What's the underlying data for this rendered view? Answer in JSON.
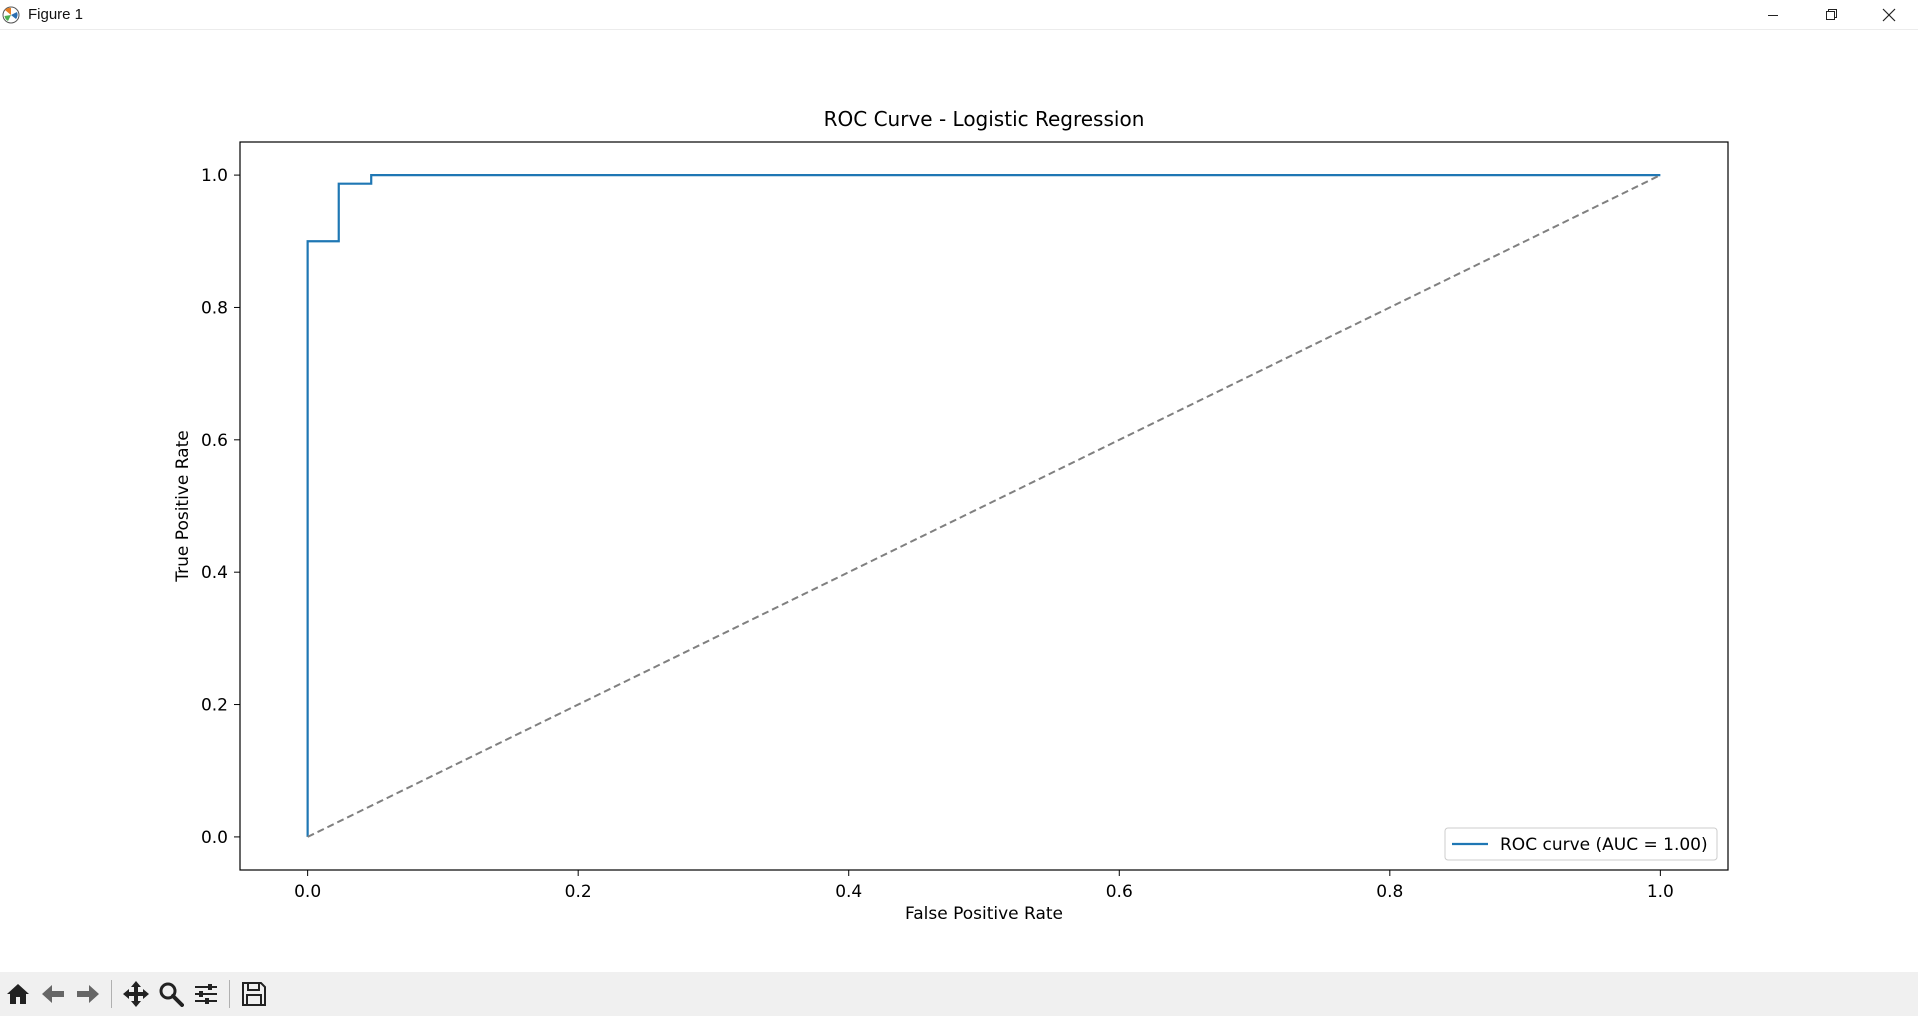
{
  "window": {
    "title": "Figure 1",
    "app_icon": "matplotlib-icon",
    "controls": [
      "minimize-icon",
      "restore-icon",
      "close-icon"
    ]
  },
  "toolbar": {
    "buttons": [
      "home-icon",
      "back-arrow-icon",
      "forward-arrow-icon",
      "pan-icon",
      "zoom-icon",
      "configure-subplots-icon",
      "save-icon"
    ]
  },
  "chart_data": {
    "type": "line",
    "title": "ROC Curve - Logistic Regression",
    "xlabel": "False Positive Rate",
    "ylabel": "True Positive Rate",
    "xlim": [
      -0.05,
      1.05
    ],
    "ylim": [
      -0.05,
      1.05
    ],
    "xticks": [
      0.0,
      0.2,
      0.4,
      0.6,
      0.8,
      1.0
    ],
    "xtick_labels": [
      "0.0",
      "0.2",
      "0.4",
      "0.6",
      "0.8",
      "1.0"
    ],
    "yticks": [
      0.0,
      0.2,
      0.4,
      0.6,
      0.8,
      1.0
    ],
    "ytick_labels": [
      "0.0",
      "0.2",
      "0.4",
      "0.6",
      "0.8",
      "1.0"
    ],
    "grid": false,
    "legend": {
      "placement": "lower-right",
      "entries": [
        "ROC curve (AUC = 1.00)"
      ]
    },
    "series": [
      {
        "name": "ROC curve (AUC = 1.00)",
        "color": "#1f77b4",
        "style": "solid",
        "x": [
          0.0,
          0.0,
          0.023,
          0.023,
          0.047,
          0.047,
          1.0
        ],
        "y": [
          0.0,
          0.9,
          0.9,
          0.987,
          0.987,
          1.0,
          1.0
        ]
      },
      {
        "color": "#808080",
        "style": "dashed",
        "x": [
          0.0,
          1.0
        ],
        "y": [
          0.0,
          1.0
        ]
      }
    ]
  }
}
